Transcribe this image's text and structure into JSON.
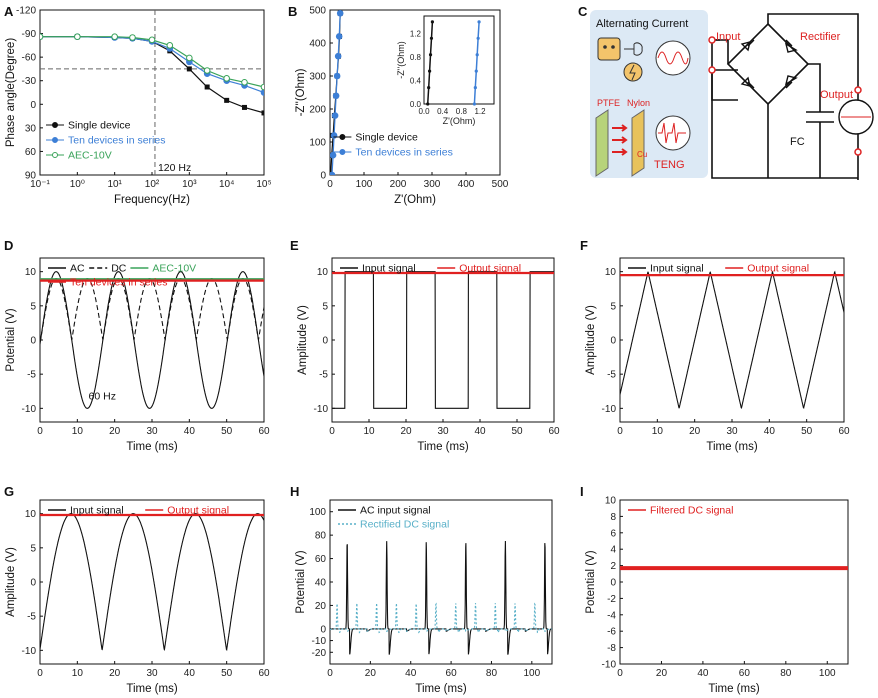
{
  "colors": {
    "black": "#111111",
    "blue": "#3d7fd6",
    "green": "#3aa35a",
    "red": "#e02020",
    "teal": "#59b0c8",
    "panelbg": "#dce9f5"
  },
  "panel_labels": [
    "A",
    "B",
    "C",
    "D",
    "E",
    "F",
    "G",
    "H",
    "I"
  ],
  "chart_data": [
    {
      "id": "A",
      "type": "line",
      "xlabel": "Frequency(Hz)",
      "ylabel": "Phase angle(Degree)",
      "xscale": "log",
      "xlim": [
        0.1,
        100000
      ],
      "ylim": [
        -120,
        90
      ],
      "y_inverted": true,
      "xticks": [
        "10⁻¹",
        "10⁰",
        "10¹",
        "10²",
        "10³",
        "10⁴",
        "10⁵"
      ],
      "yticks": [
        "-120",
        "-90",
        "-60",
        "-30",
        "0",
        "30",
        "60",
        "90"
      ],
      "annotation": "120 Hz",
      "annotation_x": 120,
      "ref_hline": -45,
      "legend": "lower-left",
      "series": [
        {
          "name": "Single device",
          "color_key": "black",
          "marker": "square",
          "x": [
            0.1,
            1,
            10,
            30,
            100,
            300,
            1000,
            3000,
            10000,
            30000,
            100000
          ],
          "y": [
            -86,
            -86,
            -85,
            -84,
            -80,
            -68,
            -45,
            -22,
            -5,
            4,
            11
          ]
        },
        {
          "name": "Ten devices in series",
          "color_key": "blue",
          "marker": "circle",
          "x": [
            0.1,
            1,
            10,
            30,
            100,
            300,
            1000,
            3000,
            10000,
            30000,
            100000
          ],
          "y": [
            -86,
            -86,
            -85,
            -84,
            -80,
            -71,
            -54,
            -39,
            -30,
            -24,
            -15
          ]
        },
        {
          "name": "AEC-10V",
          "color_key": "green",
          "marker": "open-circle",
          "x": [
            0.1,
            1,
            10,
            30,
            100,
            300,
            1000,
            3000,
            10000,
            30000,
            100000
          ],
          "y": [
            -86,
            -86,
            -86,
            -85,
            -82,
            -75,
            -59,
            -43,
            -33,
            -28,
            -22
          ]
        }
      ]
    },
    {
      "id": "B",
      "type": "line",
      "xlabel": "Z'(Ohm)",
      "ylabel": "-Z''(Ohm)",
      "xlim": [
        0,
        500
      ],
      "ylim": [
        0,
        500
      ],
      "xticks": [
        "0",
        "100",
        "200",
        "300",
        "400",
        "500"
      ],
      "yticks": [
        "0",
        "100",
        "200",
        "300",
        "400",
        "500"
      ],
      "legend": "lower-right",
      "series": [
        {
          "name": "Single device",
          "color_key": "black",
          "marker": "square",
          "x": [
            2,
            5,
            9,
            13,
            17,
            21,
            25,
            28,
            30
          ],
          "y": [
            0,
            60,
            120,
            180,
            240,
            300,
            360,
            420,
            490
          ]
        },
        {
          "name": "Ten devices in series",
          "color_key": "blue",
          "marker": "circle",
          "x": [
            6,
            9,
            12,
            15,
            18,
            21,
            24,
            27,
            30
          ],
          "y": [
            0,
            60,
            120,
            180,
            240,
            300,
            360,
            420,
            490
          ]
        }
      ],
      "inset": {
        "xlabel": "Z'(Ohm)",
        "ylabel": "-Z''(Ohm)",
        "xlim": [
          0,
          1.5
        ],
        "ylim": [
          0,
          1.5
        ],
        "xticks": [
          "0.0",
          "0.4",
          "0.8",
          "1.2"
        ],
        "yticks": [
          "0.0",
          "0.4",
          "0.8",
          "1.2"
        ],
        "series": [
          {
            "color_key": "black",
            "x": [
              0.08,
              0.1,
              0.12,
              0.14,
              0.16,
              0.18
            ],
            "y": [
              0,
              0.28,
              0.56,
              0.84,
              1.12,
              1.4
            ]
          },
          {
            "color_key": "blue",
            "x": [
              1.08,
              1.1,
              1.12,
              1.14,
              1.16,
              1.18
            ],
            "y": [
              0,
              0.28,
              0.56,
              0.84,
              1.12,
              1.4
            ]
          }
        ]
      }
    },
    {
      "id": "D",
      "type": "line",
      "xlabel": "Time (ms)",
      "ylabel": "Potential (V)",
      "xlim": [
        0,
        60
      ],
      "ylim": [
        -12,
        12
      ],
      "xticks": [
        "0",
        "10",
        "20",
        "30",
        "40",
        "50",
        "60"
      ],
      "yticks": [
        "-10",
        "-5",
        "0",
        "5",
        "10"
      ],
      "annotation": "60 Hz",
      "legend": "top",
      "series": [
        {
          "name": "AC",
          "color_key": "black",
          "style": "solid",
          "wave": "sine",
          "amplitude": 10,
          "period_ms": 16.67
        },
        {
          "name": "DC",
          "color_key": "black",
          "style": "dashed",
          "wave": "rectified",
          "amplitude": 9,
          "period_ms": 16.67
        },
        {
          "name": "AEC-10V",
          "color_key": "green",
          "style": "solid",
          "wave": "flat",
          "level": 8.9
        },
        {
          "name": "Ten devices in series",
          "color_key": "red",
          "style": "solid",
          "wave": "flat",
          "level": 8.7
        }
      ]
    },
    {
      "id": "E",
      "type": "line",
      "xlabel": "Time (ms)",
      "ylabel": "Amplitude (V)",
      "xlim": [
        0,
        60
      ],
      "ylim": [
        -12,
        12
      ],
      "xticks": [
        "0",
        "10",
        "20",
        "30",
        "40",
        "50",
        "60"
      ],
      "yticks": [
        "-10",
        "-5",
        "0",
        "5",
        "10"
      ],
      "legend": "top",
      "series": [
        {
          "name": "Input signal",
          "color_key": "black",
          "wave": "square",
          "amplitude": 10,
          "period_ms": 16.67,
          "phase_ms": 3.5
        },
        {
          "name": "Output signal",
          "color_key": "red",
          "wave": "flat",
          "level": 9.8
        }
      ]
    },
    {
      "id": "F",
      "type": "line",
      "xlabel": "Time (ms)",
      "ylabel": "Amplitude (V)",
      "xlim": [
        0,
        60
      ],
      "ylim": [
        -12,
        12
      ],
      "xticks": [
        "0",
        "10",
        "20",
        "30",
        "40",
        "50",
        "60"
      ],
      "yticks": [
        "-10",
        "-5",
        "0",
        "5",
        "10"
      ],
      "legend": "top",
      "series": [
        {
          "name": "Input signal",
          "color_key": "black",
          "wave": "triangle",
          "amplitude": 10,
          "period_ms": 16.67,
          "peak_ms": 7.5
        },
        {
          "name": "Output signal",
          "color_key": "red",
          "wave": "flat",
          "level": 9.5
        }
      ]
    },
    {
      "id": "G",
      "type": "line",
      "xlabel": "Time (ms)",
      "ylabel": "Amplitude (V)",
      "xlim": [
        0,
        60
      ],
      "ylim": [
        -12,
        12
      ],
      "xticks": [
        "0",
        "10",
        "20",
        "30",
        "40",
        "50",
        "60"
      ],
      "yticks": [
        "-10",
        "-5",
        "0",
        "5",
        "10"
      ],
      "legend": "top",
      "series": [
        {
          "name": "Input signal",
          "color_key": "black",
          "wave": "arch",
          "amplitude": 10,
          "period_ms": 16.67,
          "peak_ms": 8.3
        },
        {
          "name": "Output signal",
          "color_key": "red",
          "wave": "flat",
          "level": 9.8
        }
      ]
    },
    {
      "id": "H",
      "type": "line",
      "xlabel": "Time (ms)",
      "ylabel": "Potential (V)",
      "xlim": [
        0,
        110
      ],
      "ylim": [
        -30,
        110
      ],
      "xticks": [
        "0",
        "20",
        "40",
        "60",
        "80",
        "100"
      ],
      "yticks": [
        "-20",
        "-10",
        "0",
        "20",
        "40",
        "60",
        "80",
        "100"
      ],
      "legend": "top",
      "series": [
        {
          "name": "AC input signal",
          "color_key": "black",
          "wave": "spikes",
          "peak": 75,
          "neg": -22,
          "period_ms": 19.6,
          "first_ms": 8.5
        },
        {
          "name": "Rectified DC signal",
          "color_key": "teal",
          "style": "dotted",
          "wave": "spikes",
          "peak": 22,
          "neg": -3,
          "period_ms": 9.8,
          "first_ms": 3.5
        }
      ]
    },
    {
      "id": "I",
      "type": "line",
      "xlabel": "Time (ms)",
      "ylabel": "Potential (V)",
      "xlim": [
        0,
        110
      ],
      "ylim": [
        -10,
        10
      ],
      "xticks": [
        "0",
        "20",
        "40",
        "60",
        "80",
        "100"
      ],
      "yticks": [
        "-10",
        "-8",
        "-6",
        "-4",
        "-2",
        "0",
        "2",
        "4",
        "6",
        "8",
        "10"
      ],
      "legend": "top",
      "series": [
        {
          "name": "Filtered DC signal",
          "color_key": "red",
          "wave": "flat",
          "level": 1.7
        }
      ]
    }
  ],
  "diagram_c": {
    "alternating_current": "Alternating Current",
    "ptfe": "PTFE",
    "nylon": "Nylon",
    "cu": "Cu",
    "teng": "TENG",
    "input": "Input",
    "rectifier": "Rectifier",
    "output": "Output",
    "fc": "FC"
  }
}
